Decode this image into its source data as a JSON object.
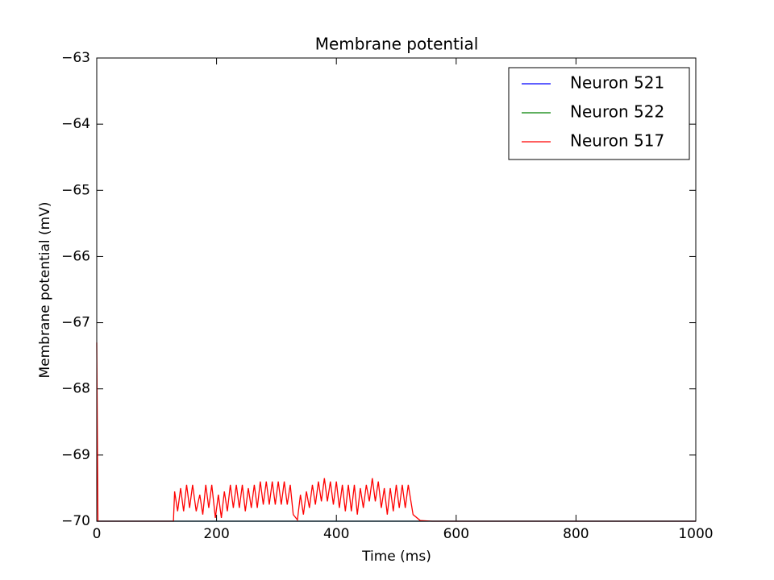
{
  "chart_data": {
    "type": "line",
    "title": "Membrane potential",
    "x_label": "Time (ms)",
    "y_label": "Membrane potential (mV)",
    "xlim": [
      0,
      1000
    ],
    "ylim": [
      -70,
      -63
    ],
    "xticks": [
      0,
      200,
      400,
      600,
      800,
      1000
    ],
    "yticks": [
      {
        "value": -70,
        "label": "−70"
      },
      {
        "value": -69,
        "label": "−69"
      },
      {
        "value": -68,
        "label": "−68"
      },
      {
        "value": -67,
        "label": "−67"
      },
      {
        "value": -66,
        "label": "−66"
      },
      {
        "value": -65,
        "label": "−65"
      },
      {
        "value": -64,
        "label": "−64"
      },
      {
        "value": -63,
        "label": "−63"
      }
    ],
    "legend": "upper right",
    "grid": false,
    "series": [
      {
        "name": "Neuron 521",
        "color": "#0000ff",
        "x": [
          0,
          1000
        ],
        "values": [
          -70,
          -70
        ]
      },
      {
        "name": "Neuron 522",
        "color": "#008000",
        "x": [
          0,
          1000
        ],
        "values": [
          -70,
          -70
        ]
      },
      {
        "name": "Neuron 517",
        "color": "#ff0000",
        "x": [
          0,
          2,
          128,
          130,
          135,
          140,
          145,
          150,
          155,
          160,
          166,
          172,
          177,
          182,
          187,
          192,
          198,
          203,
          208,
          213,
          218,
          223,
          228,
          233,
          238,
          243,
          248,
          253,
          258,
          263,
          268,
          273,
          278,
          283,
          288,
          293,
          298,
          303,
          308,
          313,
          318,
          323,
          328,
          335,
          340,
          345,
          350,
          355,
          360,
          365,
          370,
          375,
          380,
          385,
          390,
          395,
          400,
          405,
          410,
          415,
          420,
          425,
          430,
          435,
          440,
          445,
          450,
          455,
          460,
          465,
          470,
          475,
          480,
          485,
          490,
          495,
          500,
          505,
          510,
          515,
          520,
          528,
          540,
          560,
          1000
        ],
        "values": [
          -67.3,
          -70,
          -70,
          -69.55,
          -69.85,
          -69.5,
          -69.85,
          -69.45,
          -69.8,
          -69.45,
          -69.85,
          -69.6,
          -69.9,
          -69.45,
          -69.8,
          -69.45,
          -69.95,
          -69.6,
          -69.95,
          -69.55,
          -69.85,
          -69.45,
          -69.8,
          -69.45,
          -69.8,
          -69.45,
          -69.85,
          -69.5,
          -69.8,
          -69.45,
          -69.8,
          -69.4,
          -69.75,
          -69.4,
          -69.75,
          -69.4,
          -69.75,
          -69.4,
          -69.75,
          -69.4,
          -69.75,
          -69.45,
          -69.9,
          -69.98,
          -69.6,
          -69.9,
          -69.55,
          -69.8,
          -69.45,
          -69.75,
          -69.4,
          -69.7,
          -69.35,
          -69.7,
          -69.4,
          -69.75,
          -69.4,
          -69.8,
          -69.45,
          -69.85,
          -69.45,
          -69.85,
          -69.45,
          -69.9,
          -69.5,
          -69.8,
          -69.45,
          -69.7,
          -69.35,
          -69.7,
          -69.4,
          -69.8,
          -69.5,
          -69.9,
          -69.5,
          -69.85,
          -69.45,
          -69.8,
          -69.45,
          -69.8,
          -69.45,
          -69.9,
          -69.99,
          -70,
          -70
        ]
      }
    ]
  }
}
